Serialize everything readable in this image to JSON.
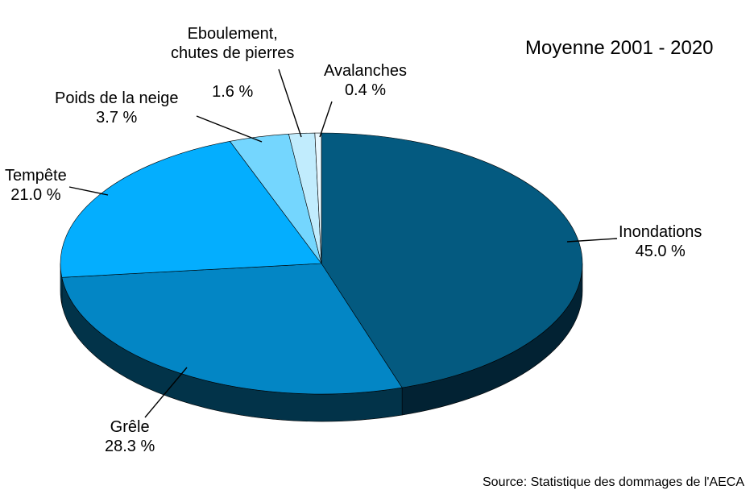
{
  "chart_data": {
    "type": "pie",
    "title": "Moyenne 2001 - 2020",
    "source": "Source: Statistique des dommages de l'AECA",
    "slices": [
      {
        "name": "Inondations",
        "value": 45.0,
        "value_label": "45.0 %",
        "color": "#045A80",
        "side_color": "#022233"
      },
      {
        "name": "Grêle",
        "value": 28.3,
        "value_label": "28.3 %",
        "color": "#0386C5",
        "side_color": "#023349"
      },
      {
        "name": "Tempête",
        "value": 21.0,
        "value_label": "21.0 %",
        "color": "#04AEFE",
        "side_color": "#024C6E"
      },
      {
        "name": "Poids de la neige",
        "value": 3.7,
        "value_label": "3.7 %",
        "color": "#74D6FE",
        "side_color": "#2E6A85"
      },
      {
        "name": "Eboulement,\nchutes de pierres",
        "value": 1.6,
        "value_label": "1.6 %",
        "color": "#C1ECFD",
        "side_color": "#5C8190"
      },
      {
        "name": "Avalanches",
        "value": 0.4,
        "value_label": "0.4 %",
        "color": "#E9F8FF",
        "side_color": "#7D8E96"
      }
    ]
  }
}
